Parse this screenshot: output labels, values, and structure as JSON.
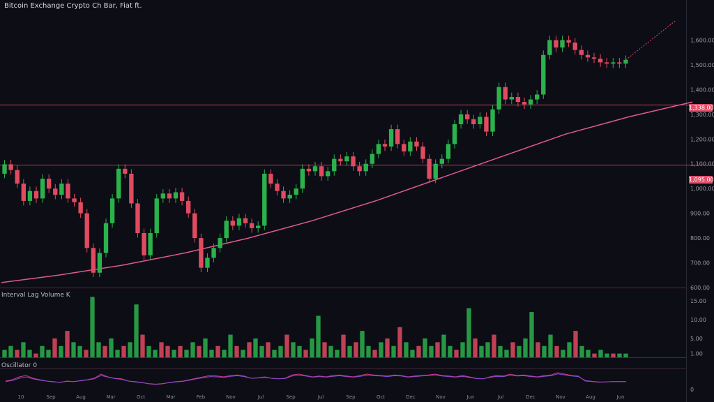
{
  "header": {
    "title": "Bitcoin Exchange Crypto Ch Bar, Fiat ft."
  },
  "panes": {
    "volume_label": "Interval Lag Volume K",
    "oscillator_label": "Oscillator 0"
  },
  "colors": {
    "up": "#2bb24c",
    "down": "#e04b60",
    "line": "#e05a8c",
    "level": "#e0506a",
    "bg": "#0d0d16",
    "axis": "#6a1d28"
  },
  "chart_data": [
    {
      "type": "candlestick",
      "title": "Bitcoin Exchange Crypto Ch Bar, Fiat ft.",
      "y_ticks": [
        "1,600.00",
        "1,500.00",
        "1,400.00",
        "1,300.00",
        "1,200.00",
        "1,100.00",
        "1,000.00",
        "900.00",
        "800.00",
        "700.00",
        "600.00"
      ],
      "ylim": [
        600,
        1700
      ],
      "x_ticks": [
        "10",
        "Sep",
        "Aug",
        "Mar",
        "Oct",
        "Mar",
        "Feb",
        "Nov",
        "Jul",
        "Sep",
        "Jul",
        "Sep",
        "Oct",
        "Dec",
        "Nov",
        "Jun",
        "Jul",
        "Dec",
        "Nov",
        "Aug",
        "Jun"
      ],
      "grid": false,
      "price_labels": [
        "1,338.00",
        "1,095.00"
      ],
      "levels": [
        1338,
        1095
      ],
      "candles": [
        {
          "o": 1060,
          "c": 1098
        },
        {
          "o": 1098,
          "c": 1075
        },
        {
          "o": 1075,
          "c": 1020
        },
        {
          "o": 1020,
          "c": 950
        },
        {
          "o": 950,
          "c": 990
        },
        {
          "o": 990,
          "c": 960
        },
        {
          "o": 960,
          "c": 1040
        },
        {
          "o": 1040,
          "c": 1000
        },
        {
          "o": 1000,
          "c": 975
        },
        {
          "o": 975,
          "c": 1020
        },
        {
          "o": 1020,
          "c": 960
        },
        {
          "o": 960,
          "c": 945
        },
        {
          "o": 945,
          "c": 900
        },
        {
          "o": 900,
          "c": 760
        },
        {
          "o": 760,
          "c": 660
        },
        {
          "o": 660,
          "c": 740
        },
        {
          "o": 740,
          "c": 860
        },
        {
          "o": 860,
          "c": 960
        },
        {
          "o": 960,
          "c": 1080
        },
        {
          "o": 1080,
          "c": 1060
        },
        {
          "o": 1060,
          "c": 940
        },
        {
          "o": 940,
          "c": 820
        },
        {
          "o": 820,
          "c": 730
        },
        {
          "o": 730,
          "c": 820
        },
        {
          "o": 820,
          "c": 960
        },
        {
          "o": 960,
          "c": 980
        },
        {
          "o": 980,
          "c": 960
        },
        {
          "o": 960,
          "c": 985
        },
        {
          "o": 985,
          "c": 950
        },
        {
          "o": 950,
          "c": 900
        },
        {
          "o": 900,
          "c": 800
        },
        {
          "o": 800,
          "c": 680
        },
        {
          "o": 680,
          "c": 720
        },
        {
          "o": 720,
          "c": 760
        },
        {
          "o": 760,
          "c": 800
        },
        {
          "o": 800,
          "c": 870
        },
        {
          "o": 870,
          "c": 850
        },
        {
          "o": 850,
          "c": 880
        },
        {
          "o": 880,
          "c": 860
        },
        {
          "o": 860,
          "c": 840
        },
        {
          "o": 840,
          "c": 850
        },
        {
          "o": 850,
          "c": 1060
        },
        {
          "o": 1060,
          "c": 1020
        },
        {
          "o": 1020,
          "c": 990
        },
        {
          "o": 990,
          "c": 960
        },
        {
          "o": 960,
          "c": 975
        },
        {
          "o": 975,
          "c": 1000
        },
        {
          "o": 1000,
          "c": 1080
        },
        {
          "o": 1080,
          "c": 1070
        },
        {
          "o": 1070,
          "c": 1090
        },
        {
          "o": 1090,
          "c": 1050
        },
        {
          "o": 1050,
          "c": 1070
        },
        {
          "o": 1070,
          "c": 1120
        },
        {
          "o": 1120,
          "c": 1110
        },
        {
          "o": 1110,
          "c": 1130
        },
        {
          "o": 1130,
          "c": 1090
        },
        {
          "o": 1090,
          "c": 1070
        },
        {
          "o": 1070,
          "c": 1100
        },
        {
          "o": 1100,
          "c": 1140
        },
        {
          "o": 1140,
          "c": 1180
        },
        {
          "o": 1180,
          "c": 1170
        },
        {
          "o": 1170,
          "c": 1240
        },
        {
          "o": 1240,
          "c": 1180
        },
        {
          "o": 1180,
          "c": 1150
        },
        {
          "o": 1150,
          "c": 1190
        },
        {
          "o": 1190,
          "c": 1170
        },
        {
          "o": 1170,
          "c": 1120
        },
        {
          "o": 1120,
          "c": 1040
        },
        {
          "o": 1040,
          "c": 1100
        },
        {
          "o": 1100,
          "c": 1120
        },
        {
          "o": 1120,
          "c": 1180
        },
        {
          "o": 1180,
          "c": 1260
        },
        {
          "o": 1260,
          "c": 1300
        },
        {
          "o": 1300,
          "c": 1280
        },
        {
          "o": 1280,
          "c": 1260
        },
        {
          "o": 1260,
          "c": 1290
        },
        {
          "o": 1290,
          "c": 1230
        },
        {
          "o": 1230,
          "c": 1320
        },
        {
          "o": 1320,
          "c": 1410
        },
        {
          "o": 1410,
          "c": 1360
        },
        {
          "o": 1360,
          "c": 1370
        },
        {
          "o": 1370,
          "c": 1350
        },
        {
          "o": 1350,
          "c": 1340
        },
        {
          "o": 1340,
          "c": 1360
        },
        {
          "o": 1360,
          "c": 1380
        },
        {
          "o": 1380,
          "c": 1540
        },
        {
          "o": 1540,
          "c": 1600
        },
        {
          "o": 1600,
          "c": 1570
        },
        {
          "o": 1570,
          "c": 1600
        },
        {
          "o": 1600,
          "c": 1590
        },
        {
          "o": 1590,
          "c": 1560
        },
        {
          "o": 1560,
          "c": 1540
        },
        {
          "o": 1540,
          "c": 1530
        },
        {
          "o": 1530,
          "c": 1525
        },
        {
          "o": 1525,
          "c": 1510
        },
        {
          "o": 1510,
          "c": 1505
        },
        {
          "o": 1505,
          "c": 1510
        },
        {
          "o": 1510,
          "c": 1505
        },
        {
          "o": 1505,
          "c": 1520
        }
      ],
      "forecast": [
        1520,
        1560,
        1600,
        1640,
        1680
      ],
      "moving_average": {
        "x": [
          1,
          10,
          20,
          30,
          40,
          50,
          60,
          70,
          80,
          90,
          100,
          110
        ],
        "values": [
          620,
          650,
          690,
          740,
          800,
          870,
          950,
          1040,
          1130,
          1220,
          1290,
          1350
        ]
      }
    },
    {
      "type": "bar",
      "title": "Interval Lag Volume K",
      "y_ticks": [
        "15.00",
        "10.00",
        "5.00",
        "1.00"
      ],
      "ylim": [
        0,
        17
      ],
      "values": [
        2,
        3,
        2,
        4,
        2,
        1,
        3,
        2,
        5,
        3,
        7,
        4,
        3,
        2,
        16,
        4,
        3,
        5,
        2,
        3,
        4,
        14,
        6,
        3,
        2,
        4,
        3,
        2,
        3,
        2,
        4,
        3,
        5,
        2,
        3,
        2,
        6,
        3,
        2,
        4,
        5,
        3,
        4,
        2,
        3,
        6,
        4,
        3,
        2,
        5,
        11,
        4,
        3,
        2,
        6,
        3,
        4,
        7,
        3,
        2,
        4,
        5,
        3,
        8,
        4,
        2,
        3,
        5,
        3,
        4,
        6,
        3,
        2,
        4,
        13,
        5,
        3,
        4,
        6,
        3,
        2,
        4,
        3,
        5,
        12,
        4,
        3,
        6,
        3,
        2,
        4,
        7,
        3,
        2,
        1,
        2,
        1,
        1,
        1,
        1
      ],
      "directions": [
        1,
        1,
        0,
        1,
        1,
        0,
        1,
        1,
        0,
        1,
        0,
        1,
        1,
        0,
        1,
        1,
        0,
        1,
        1,
        0,
        1,
        1,
        0,
        1,
        1,
        0,
        0,
        1,
        0,
        1,
        1,
        0,
        1,
        1,
        0,
        1,
        1,
        0,
        1,
        0,
        1,
        1,
        0,
        1,
        1,
        0,
        1,
        1,
        0,
        1,
        1,
        0,
        1,
        1,
        0,
        1,
        0,
        1,
        1,
        0,
        1,
        0,
        1,
        0,
        1,
        1,
        0,
        1,
        1,
        0,
        1,
        1,
        0,
        1,
        1,
        0,
        1,
        1,
        0,
        1,
        1,
        0,
        1,
        1,
        1,
        0,
        1,
        1,
        0,
        1,
        1,
        0,
        1,
        1,
        0,
        1,
        1,
        0,
        1,
        1
      ]
    },
    {
      "type": "line",
      "title": "Oscillator 0",
      "y_ticks": [
        "0"
      ],
      "ylim": [
        0,
        100
      ],
      "series": [
        {
          "values": [
            40,
            45,
            55,
            60,
            50,
            45,
            40,
            38,
            35,
            40,
            38,
            42,
            45,
            50,
            65,
            55,
            50,
            48,
            40,
            38,
            35,
            30,
            28,
            30,
            35,
            38,
            40,
            45,
            50,
            55,
            60,
            58,
            55,
            60,
            62,
            58,
            50,
            52,
            55,
            50,
            48,
            50,
            62,
            65,
            60,
            55,
            58,
            55,
            60,
            62,
            58,
            55,
            60,
            65,
            62,
            60,
            58,
            62,
            60,
            55,
            58,
            60,
            62,
            65,
            60,
            58,
            55,
            60,
            55,
            50,
            48,
            55,
            60,
            58,
            65,
            60,
            62,
            58,
            55,
            60,
            62,
            70,
            65,
            60,
            58,
            40,
            38,
            36,
            37,
            38,
            38,
            38
          ]
        },
        {
          "values": [
            38,
            42,
            50,
            55,
            48,
            43,
            40,
            37,
            36,
            39,
            38,
            41,
            44,
            48,
            60,
            54,
            49,
            46,
            40,
            37,
            34,
            31,
            29,
            31,
            34,
            37,
            39,
            43,
            48,
            52,
            56,
            55,
            53,
            57,
            59,
            56,
            50,
            51,
            53,
            50,
            48,
            49,
            58,
            61,
            58,
            54,
            56,
            54,
            57,
            59,
            56,
            54,
            57,
            61,
            59,
            58,
            56,
            59,
            58,
            54,
            56,
            58,
            60,
            62,
            58,
            56,
            54,
            57,
            53,
            49,
            48,
            53,
            57,
            56,
            61,
            58,
            59,
            56,
            54,
            57,
            59,
            66,
            62,
            58,
            56,
            42,
            39,
            37,
            37,
            38,
            38,
            38
          ]
        }
      ]
    }
  ]
}
